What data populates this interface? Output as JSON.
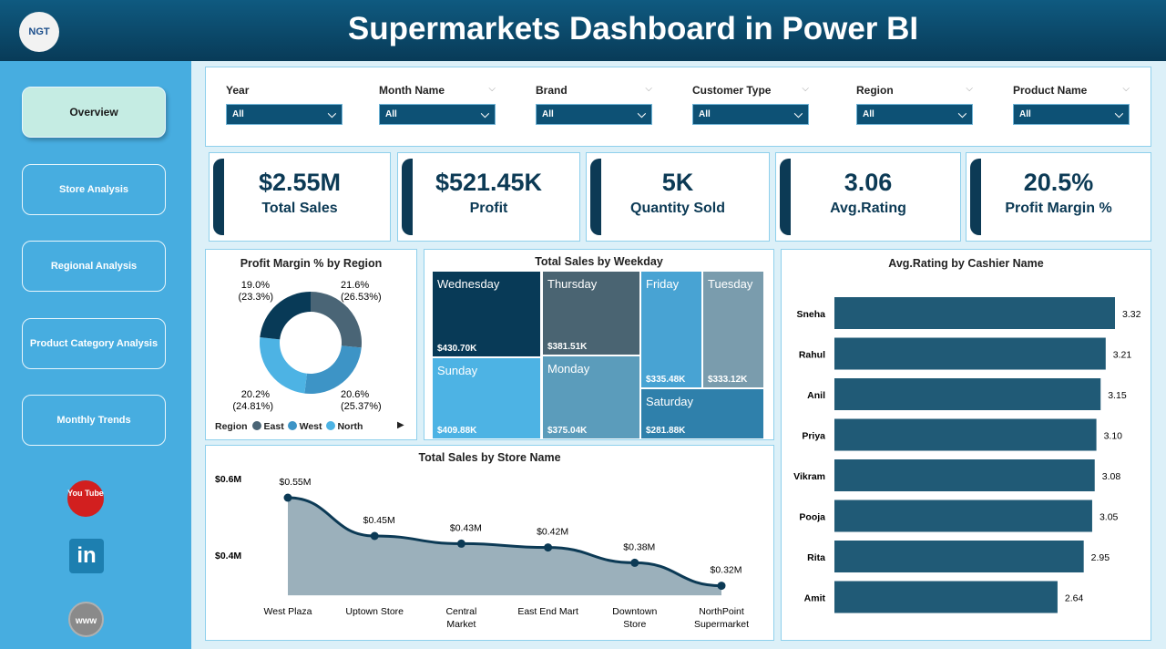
{
  "header": {
    "title": "Supermarkets Dashboard in Power BI",
    "logo_text": "NGT"
  },
  "sidebar": {
    "items": [
      {
        "label": "Overview",
        "active": true
      },
      {
        "label": "Store Analysis"
      },
      {
        "label": "Regional Analysis"
      },
      {
        "label": "Product Category Analysis"
      },
      {
        "label": "Monthly Trends"
      }
    ],
    "social": [
      "youtube-icon",
      "linkedin-icon",
      "website-globe-icon"
    ],
    "youtube_text": "You Tube",
    "linkedin_text": "in",
    "web_text": "www"
  },
  "filters": [
    {
      "label": "Year",
      "value": "All"
    },
    {
      "label": "Month Name",
      "value": "All"
    },
    {
      "label": "Brand",
      "value": "All"
    },
    {
      "label": "Customer Type",
      "value": "All"
    },
    {
      "label": "Region",
      "value": "All"
    },
    {
      "label": "Product Name",
      "value": "All"
    }
  ],
  "kpis": [
    {
      "value": "$2.55M",
      "label": "Total Sales"
    },
    {
      "value": "$521.45K",
      "label": "Profit"
    },
    {
      "value": "5K",
      "label": "Quantity Sold"
    },
    {
      "value": "3.06",
      "label": "Avg.Rating"
    },
    {
      "value": "20.5%",
      "label": "Profit Margin %"
    }
  ],
  "chart_data": [
    {
      "type": "pie",
      "title": "Profit Margin % by Region",
      "legend_title": "Region",
      "legend_placement": "bottom",
      "slices": [
        {
          "name": "East",
          "value": "21.6%",
          "share": "(26.53%)",
          "share_num": 26.53,
          "color": "#4a6576"
        },
        {
          "name": "West",
          "value": "20.6%",
          "share": "(25.37%)",
          "share_num": 25.37,
          "color": "#3d94c6"
        },
        {
          "name": "North",
          "value": "20.2%",
          "share": "(24.81%)",
          "share_num": 24.81,
          "color": "#4db3e4"
        },
        {
          "name": "",
          "value": "19.0%",
          "share": "(23.3%)",
          "share_num": 23.3,
          "color": "#083a57"
        }
      ]
    },
    {
      "type": "heatmap",
      "subtype": "treemap",
      "title": "Total Sales by Weekday",
      "items": [
        {
          "name": "Wednesday",
          "value": "$430.70K",
          "color": "#083a57"
        },
        {
          "name": "Thursday",
          "value": "$381.51K",
          "color": "#4a6472"
        },
        {
          "name": "Friday",
          "value": "$335.48K",
          "color": "#48a3d3"
        },
        {
          "name": "Tuesday",
          "value": "$333.12K",
          "color": "#7a9cad"
        },
        {
          "name": "Sunday",
          "value": "$409.88K",
          "color": "#4db3e4"
        },
        {
          "name": "Monday",
          "value": "$375.04K",
          "color": "#5b9cbb"
        },
        {
          "name": "Saturday",
          "value": "$281.88K",
          "color": "#2f80ab"
        }
      ]
    },
    {
      "type": "area",
      "title": "Total Sales by Store Name",
      "categories": [
        "West Plaza",
        "Uptown Store",
        "Central Market",
        "East End Mart",
        "Downtown Store",
        "NorthPoint Supermarket"
      ],
      "values": [
        0.55,
        0.45,
        0.43,
        0.42,
        0.38,
        0.32
      ],
      "labels": [
        "$0.55M",
        "$0.45M",
        "$0.43M",
        "$0.42M",
        "$0.38M",
        "$0.32M"
      ],
      "yticks": [
        "$0.6M",
        "$0.4M"
      ],
      "ylim": [
        0.295,
        0.6
      ]
    },
    {
      "type": "bar",
      "orientation": "horizontal",
      "title": "Avg.Rating by Cashier Name",
      "categories": [
        "Sneha",
        "Rahul",
        "Anil",
        "Priya",
        "Vikram",
        "Pooja",
        "Rita",
        "Amit"
      ],
      "values": [
        3.32,
        3.21,
        3.15,
        3.1,
        3.08,
        3.05,
        2.95,
        2.64
      ],
      "labels": [
        "3.32",
        "3.21",
        "3.15",
        "3.10",
        "3.08",
        "3.05",
        "2.95",
        "2.64"
      ],
      "xlim": [
        0,
        3.32
      ],
      "color": "#205a76"
    }
  ]
}
